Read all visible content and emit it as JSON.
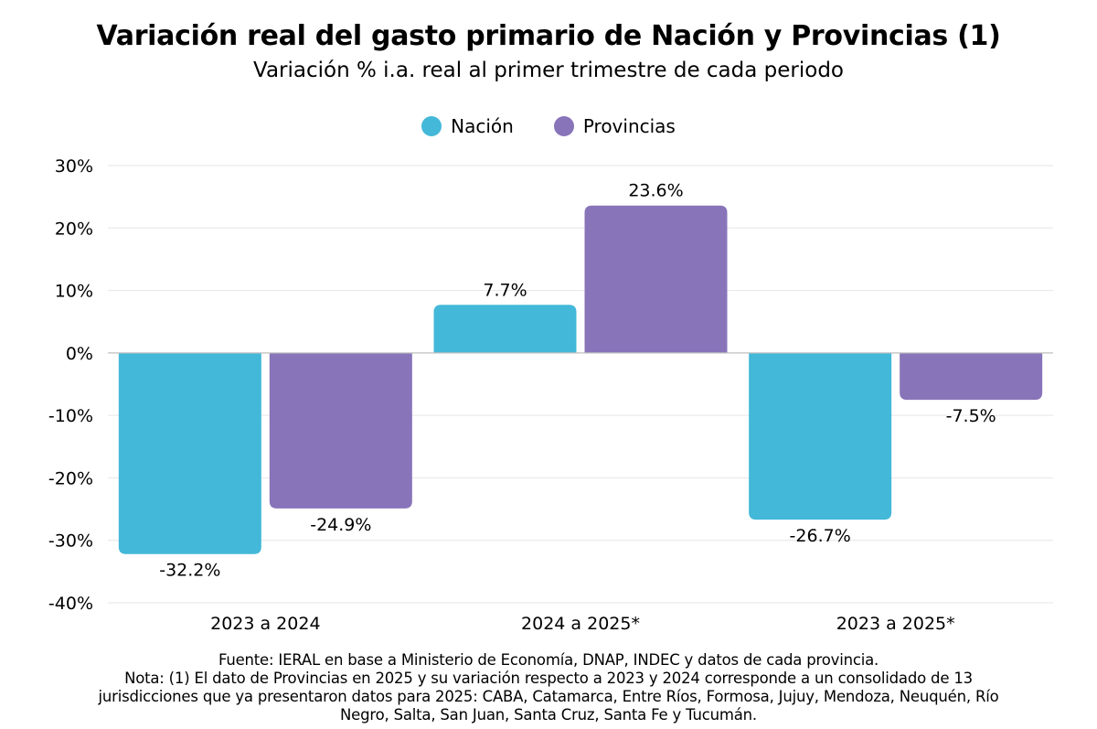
{
  "colors": {
    "nacion": "#43b8d8",
    "provincias": "#8774b9",
    "grid": "#e6e6e6",
    "baseline": "#bfbfbf"
  },
  "chart_data": {
    "type": "bar",
    "title": "Variación real del gasto primario de Nación y Provincias (1)",
    "subtitle": "Variación % i.a. real al primer trimestre de cada periodo",
    "categories": [
      "2023 a 2024",
      "2024 a 2025*",
      "2023 a 2025*"
    ],
    "series": [
      {
        "name": "Nación",
        "color": "#43b8d8",
        "values": [
          -32.2,
          7.7,
          -26.7
        ],
        "labels": [
          "-32.2%",
          "7.7%",
          "-26.7%"
        ]
      },
      {
        "name": "Provincias",
        "color": "#8774b9",
        "values": [
          -24.9,
          23.6,
          -7.5
        ],
        "labels": [
          "-24.9%",
          "23.6%",
          "-7.5%"
        ]
      }
    ],
    "ylim": [
      -40,
      30
    ],
    "yticks": [
      30,
      20,
      10,
      0,
      -10,
      -20,
      -30,
      -40
    ],
    "ytick_labels": [
      "30%",
      "20%",
      "10%",
      "0%",
      "-10%",
      "-20%",
      "-30%",
      "-40%"
    ],
    "grid": true,
    "legend_position": "top-center"
  },
  "footnote": {
    "lines": [
      "Fuente: IERAL en base a Ministerio de Economía, DNAP, INDEC y datos de cada provincia.",
      "Nota: (1) El dato de Provincias en 2025 y su variación respecto a 2023 y 2024 corresponde a un consolidado de 13",
      "jurisdicciones que ya presentaron datos para 2025: CABA, Catamarca, Entre Ríos, Formosa, Jujuy, Mendoza, Neuquén, Río",
      "Negro, Salta, San Juan, Santa Cruz, Santa Fe y Tucumán."
    ]
  }
}
